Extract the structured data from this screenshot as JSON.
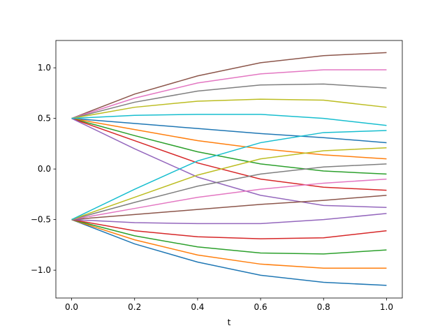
{
  "chart_data": {
    "type": "line",
    "xlabel": "t",
    "x": [
      0,
      0.2,
      0.4,
      0.6,
      0.8,
      1.0
    ],
    "xlim": [
      -0.05,
      1.05
    ],
    "ylim": [
      -1.275,
      1.27
    ],
    "xticks": [
      {
        "value": 0,
        "label": "0.0"
      },
      {
        "value": 0.2,
        "label": "0.2"
      },
      {
        "value": 0.4,
        "label": "0.4"
      },
      {
        "value": 0.6,
        "label": "0.6"
      },
      {
        "value": 0.8,
        "label": "0.8"
      },
      {
        "value": 1.0,
        "label": "1.0"
      }
    ],
    "yticks": [
      {
        "value": -1.0,
        "label": "−1.0"
      },
      {
        "value": -0.5,
        "label": "−0.5"
      },
      {
        "value": 0,
        "label": "0.0"
      },
      {
        "value": 0.5,
        "label": "0.5"
      },
      {
        "value": 1.0,
        "label": "1.0"
      }
    ],
    "series": [
      {
        "color": "#1f77b4",
        "values": [
          0.5,
          0.45,
          0.4,
          0.35,
          0.31,
          0.26
        ]
      },
      {
        "color": "#ff7f0e",
        "values": [
          0.5,
          0.39,
          0.28,
          0.2,
          0.14,
          0.1
        ]
      },
      {
        "color": "#2ca02c",
        "values": [
          0.5,
          0.33,
          0.17,
          0.05,
          -0.02,
          -0.05
        ]
      },
      {
        "color": "#d62728",
        "values": [
          0.5,
          0.28,
          0.06,
          -0.1,
          -0.18,
          -0.21
        ]
      },
      {
        "color": "#9467bd",
        "values": [
          0.5,
          0.2,
          -0.08,
          -0.26,
          -0.36,
          -0.38
        ]
      },
      {
        "color": "#8c564b",
        "values": [
          0.5,
          0.74,
          0.92,
          1.05,
          1.12,
          1.15
        ]
      },
      {
        "color": "#e377c2",
        "values": [
          0.5,
          0.7,
          0.85,
          0.94,
          0.98,
          0.98
        ]
      },
      {
        "color": "#7f7f7f",
        "values": [
          0.5,
          0.66,
          0.77,
          0.83,
          0.84,
          0.8
        ]
      },
      {
        "color": "#bcbd22",
        "values": [
          0.5,
          0.61,
          0.67,
          0.69,
          0.68,
          0.61
        ]
      },
      {
        "color": "#17becf",
        "values": [
          0.5,
          0.53,
          0.54,
          0.54,
          0.5,
          0.43
        ]
      },
      {
        "color": "#1f77b4",
        "values": [
          -0.5,
          -0.74,
          -0.92,
          -1.05,
          -1.12,
          -1.15
        ]
      },
      {
        "color": "#ff7f0e",
        "values": [
          -0.5,
          -0.7,
          -0.85,
          -0.94,
          -0.98,
          -0.98
        ]
      },
      {
        "color": "#2ca02c",
        "values": [
          -0.5,
          -0.66,
          -0.77,
          -0.83,
          -0.84,
          -0.8
        ]
      },
      {
        "color": "#d62728",
        "values": [
          -0.5,
          -0.61,
          -0.67,
          -0.69,
          -0.68,
          -0.61
        ]
      },
      {
        "color": "#9467bd",
        "values": [
          -0.5,
          -0.53,
          -0.54,
          -0.54,
          -0.5,
          -0.44
        ]
      },
      {
        "color": "#8c564b",
        "values": [
          -0.5,
          -0.45,
          -0.4,
          -0.35,
          -0.31,
          -0.26
        ]
      },
      {
        "color": "#e377c2",
        "values": [
          -0.5,
          -0.39,
          -0.28,
          -0.2,
          -0.14,
          -0.1
        ]
      },
      {
        "color": "#7f7f7f",
        "values": [
          -0.5,
          -0.33,
          -0.17,
          -0.05,
          0.02,
          0.05
        ]
      },
      {
        "color": "#bcbd22",
        "values": [
          -0.5,
          -0.28,
          -0.06,
          0.1,
          0.18,
          0.21
        ]
      },
      {
        "color": "#17becf",
        "values": [
          -0.5,
          -0.2,
          0.08,
          0.26,
          0.36,
          0.38
        ]
      }
    ]
  }
}
